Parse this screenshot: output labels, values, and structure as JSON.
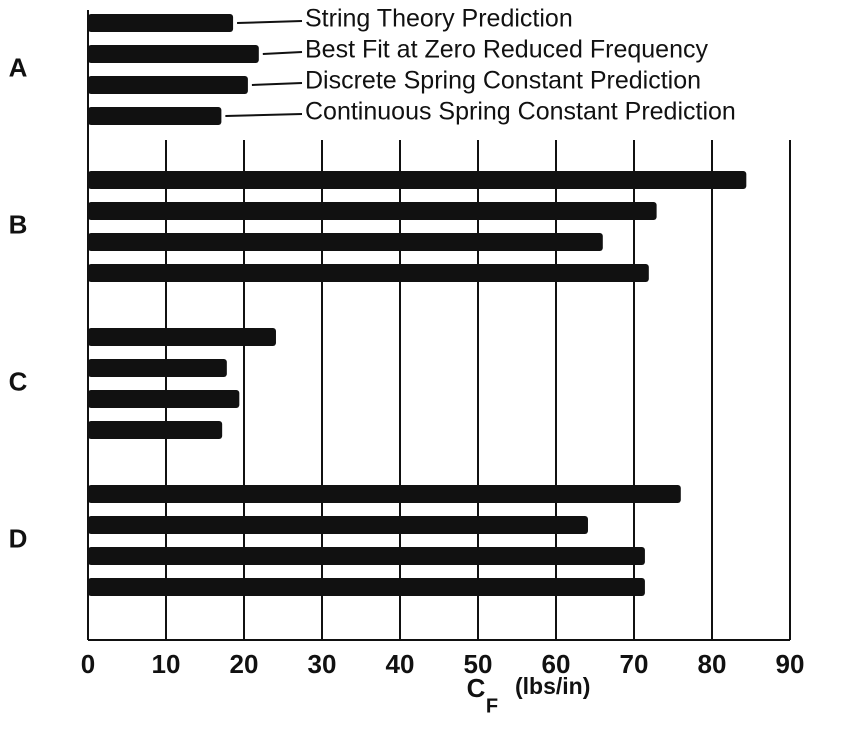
{
  "chart_data": {
    "type": "barh",
    "categories": [
      "A",
      "B",
      "C",
      "D"
    ],
    "series": [
      {
        "name": "String Theory Prediction",
        "color": "#111111",
        "values": [
          18.6,
          84.4,
          24.1,
          76.0
        ]
      },
      {
        "name": "Best Fit at Zero Reduced Frequency",
        "color": "#111111",
        "values": [
          21.9,
          72.9,
          17.8,
          64.1
        ]
      },
      {
        "name": "Discrete Spring Constant Prediction",
        "color": "#111111",
        "values": [
          20.5,
          66.0,
          19.4,
          71.4
        ]
      },
      {
        "name": "Continuous Spring Constant Prediction",
        "color": "#111111",
        "values": [
          17.1,
          71.9,
          17.2,
          71.4
        ]
      }
    ],
    "xlabel": {
      "symbol": "C",
      "subscript": "F",
      "unit": "(lbs/in)"
    },
    "xlim": [
      0,
      90
    ],
    "xticks": [
      0,
      10,
      20,
      30,
      40,
      50,
      60,
      70,
      80,
      90
    ],
    "grid": true
  }
}
